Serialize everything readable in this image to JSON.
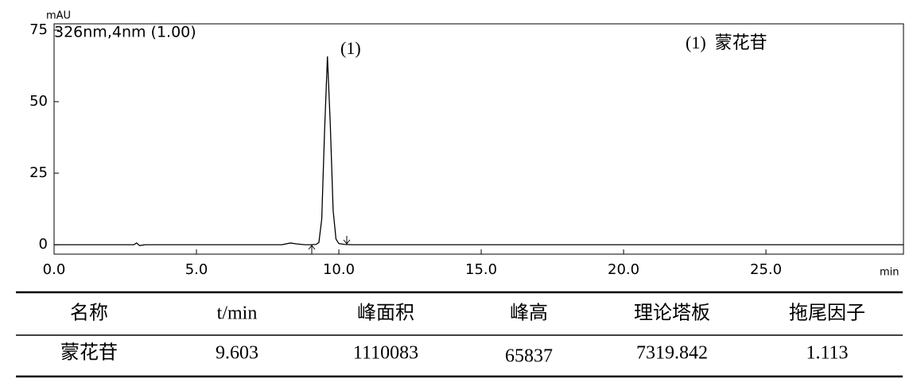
{
  "chart_data": {
    "type": "line",
    "y_label": "mAU",
    "x_label": "min",
    "annotation": "(1)",
    "legend_text": "(1)  蒙花苷",
    "x": [
      0,
      2.8,
      2.9,
      3.0,
      3.2,
      8.0,
      8.3,
      8.5,
      8.8,
      9.0,
      9.2,
      9.3,
      9.4,
      9.5,
      9.6,
      9.7,
      9.8,
      9.9,
      10.0,
      10.2,
      10.5,
      29.83
    ],
    "series": [
      {
        "name": "326nm,4nm (1.00)",
        "color": "#000000",
        "values": [
          0,
          0,
          0.6,
          -0.3,
          0,
          0,
          0.6,
          0.3,
          0,
          0,
          0.1,
          0.8,
          9,
          40,
          65.8,
          42,
          12,
          2,
          0.4,
          0.1,
          0,
          0
        ]
      }
    ],
    "xlim": [
      0,
      29.83
    ],
    "ylim": [
      -3.3,
      77.2
    ],
    "xticks": [
      {
        "value": 0,
        "label": "0.0"
      },
      {
        "value": 5,
        "label": "5.0"
      },
      {
        "value": 10,
        "label": "10.0"
      },
      {
        "value": 15,
        "label": "15.0"
      },
      {
        "value": 20,
        "label": "20.0"
      },
      {
        "value": 25,
        "label": "25.0"
      }
    ],
    "yticks": [
      0,
      25,
      50,
      75
    ]
  },
  "table": {
    "header": [
      "名称",
      "t/min",
      "峰面积",
      "峰高",
      "理论塔板",
      "拖尾因子"
    ],
    "rows": [
      [
        "蒙花苷",
        9.603,
        1110083,
        65837,
        7319.842,
        1.113
      ]
    ]
  }
}
